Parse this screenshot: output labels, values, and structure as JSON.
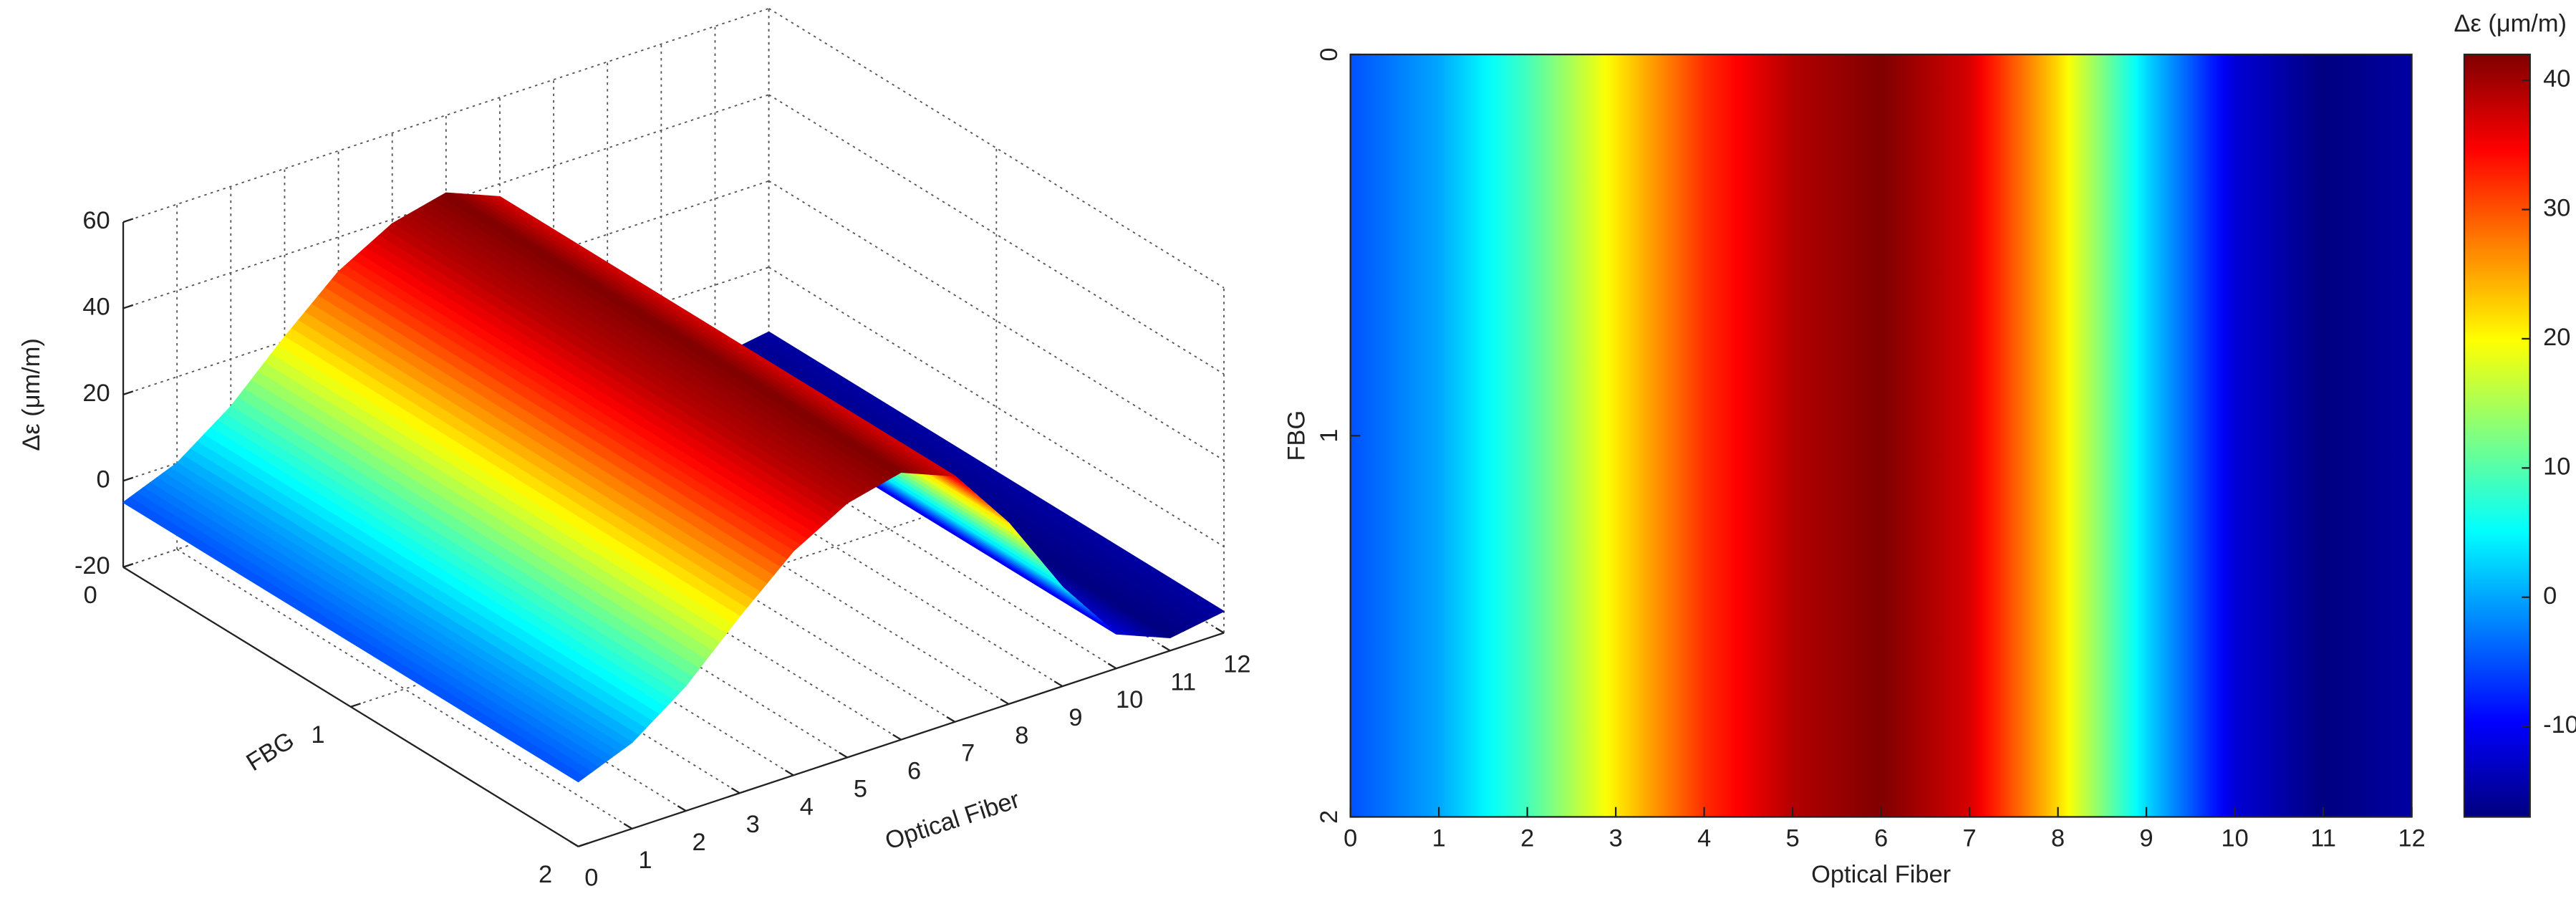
{
  "chart_data": [
    {
      "type": "surface",
      "x": [
        0,
        1,
        2,
        3,
        4,
        5,
        6,
        7,
        8,
        9,
        10,
        11,
        12
      ],
      "values": [
        -5,
        0,
        9,
        21,
        32,
        39,
        42,
        37,
        22,
        3,
        -12,
        -17,
        -15
      ],
      "xlabel": "Optical Fiber",
      "ylabel": "FBG",
      "zlabel": "Δε (μm/m)",
      "xlim": [
        0,
        12
      ],
      "ylim": [
        0,
        2
      ],
      "zlim": [
        -20,
        60
      ],
      "xticks": [
        0,
        1,
        2,
        3,
        4,
        5,
        6,
        7,
        8,
        9,
        10,
        11,
        12
      ],
      "yticks": [
        0,
        1,
        2
      ],
      "zticks": [
        -20,
        0,
        20,
        40,
        60
      ],
      "colormap": "jet",
      "grid": true
    },
    {
      "type": "heatmap",
      "x": [
        0,
        1,
        2,
        3,
        4,
        5,
        6,
        7,
        8,
        9,
        10,
        11,
        12
      ],
      "values": [
        -5,
        0,
        9,
        21,
        32,
        39,
        42,
        37,
        22,
        3,
        -12,
        -17,
        -15
      ],
      "xlabel": "Optical Fiber",
      "ylabel": "FBG",
      "xlim": [
        0,
        12
      ],
      "ylim": [
        0,
        2
      ],
      "xticks": [
        0,
        1,
        2,
        3,
        4,
        5,
        6,
        7,
        8,
        9,
        10,
        11,
        12
      ],
      "yticks": [
        0,
        1,
        2
      ],
      "y_reversed": true,
      "colormap": "jet",
      "clim": [
        -17,
        42
      ],
      "colorbar_label": "Δε (μm/m)",
      "colorbar_ticks": [
        -10,
        0,
        10,
        20,
        30,
        40
      ]
    }
  ]
}
